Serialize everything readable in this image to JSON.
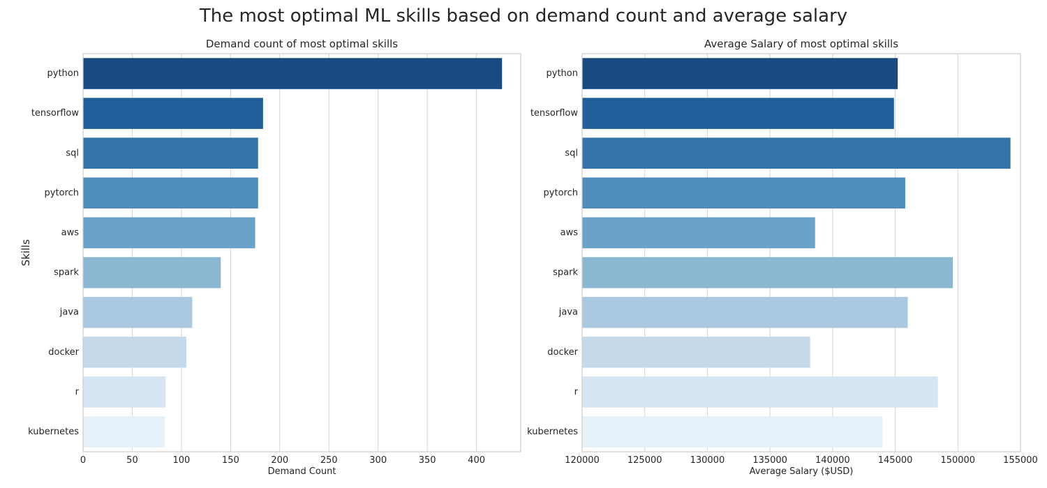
{
  "figure": {
    "suptitle": "The most optimal ML skills based on demand count and average salary"
  },
  "chart_data": [
    {
      "type": "bar",
      "orientation": "horizontal",
      "title": "Demand count of most optimal skills",
      "xlabel": "Demand Count",
      "ylabel": "Skills",
      "categories": [
        "python",
        "tensorflow",
        "sql",
        "pytorch",
        "aws",
        "spark",
        "java",
        "docker",
        "r",
        "kubernetes"
      ],
      "values": [
        426,
        183,
        178,
        178,
        175,
        140,
        111,
        105,
        84,
        83
      ],
      "xlim": [
        0,
        445
      ],
      "xticks": [
        0,
        50,
        100,
        150,
        200,
        250,
        300,
        350,
        400
      ],
      "grid": true,
      "colors": [
        "#1a4a82",
        "#215f9a",
        "#3574ab",
        "#4f8eba",
        "#6aa2c9",
        "#8cb7d3",
        "#a8c9df",
        "#c4d9e9",
        "#d6e5f1",
        "#e6f0f8"
      ]
    },
    {
      "type": "bar",
      "orientation": "horizontal",
      "title": "Average Salary of most optimal skills",
      "xlabel": "Average Salary ($USD)",
      "ylabel": "",
      "categories": [
        "python",
        "tensorflow",
        "sql",
        "pytorch",
        "aws",
        "spark",
        "java",
        "docker",
        "r",
        "kubernetes"
      ],
      "values": [
        145200,
        144900,
        154200,
        145800,
        138600,
        149600,
        146000,
        138200,
        148400,
        144000
      ],
      "xlim": [
        120000,
        155000
      ],
      "xticks": [
        120000,
        125000,
        130000,
        135000,
        140000,
        145000,
        150000,
        155000
      ],
      "grid": true,
      "colors": [
        "#1a4a82",
        "#215f9a",
        "#3574ab",
        "#4f8eba",
        "#6aa2c9",
        "#8cb7d3",
        "#a8c9df",
        "#c4d9e9",
        "#d6e5f1",
        "#e6f0f8"
      ]
    }
  ]
}
